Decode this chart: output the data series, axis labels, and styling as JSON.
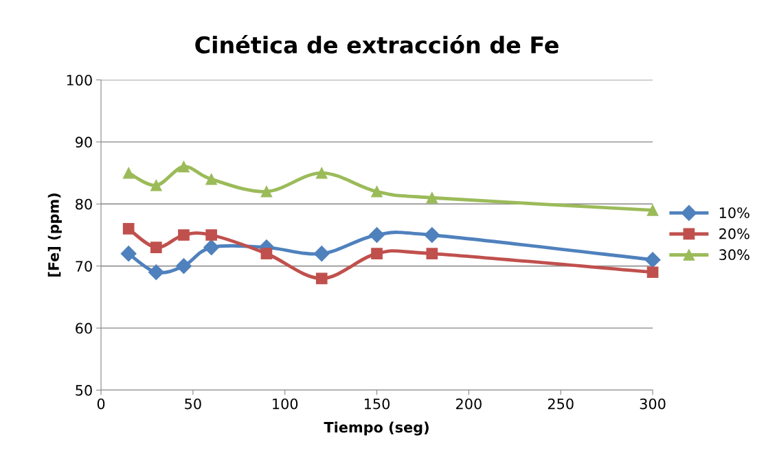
{
  "chart_data": {
    "type": "line",
    "title": "Cinética de extracción de Fe",
    "xlabel": "Tiempo (seg)",
    "ylabel": "[Fe] (ppm)",
    "x": [
      15,
      30,
      45,
      60,
      90,
      120,
      150,
      180,
      300
    ],
    "series": [
      {
        "name": "10%",
        "color": "#4f81bd",
        "marker": "diamond",
        "values": [
          72,
          69,
          70,
          73,
          73,
          72,
          75,
          75,
          71
        ]
      },
      {
        "name": "20%",
        "color": "#c0504d",
        "marker": "square",
        "values": [
          76,
          73,
          75,
          75,
          72,
          68,
          72,
          72,
          69
        ]
      },
      {
        "name": "30%",
        "color": "#9bbb59",
        "marker": "triangle",
        "values": [
          85,
          83,
          86,
          84,
          82,
          85,
          82,
          81,
          79
        ]
      }
    ],
    "xlim": [
      0,
      300
    ],
    "xticks": [
      0,
      50,
      100,
      150,
      200,
      250,
      300
    ],
    "ylim": [
      50,
      100
    ],
    "yticks": [
      50,
      60,
      70,
      80,
      90,
      100
    ],
    "grid": "y",
    "legend": "right",
    "line_style": "solid"
  }
}
